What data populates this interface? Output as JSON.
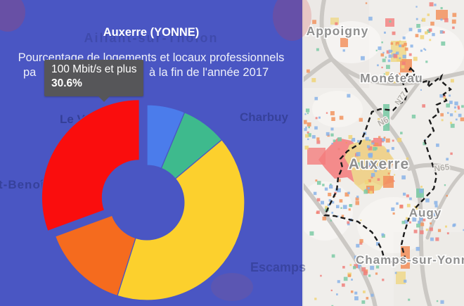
{
  "panel": {
    "title": "Auxerre (YONNE)",
    "subtitle_line1": "Pourcentage de logements et locaux professionnels",
    "subtitle_line2_left": "pa",
    "subtitle_line2_right": "à la fin de l'année 2017",
    "background_color": "#4a56c3"
  },
  "tooltip": {
    "label": "100 Mbit/s et plus",
    "value": "30.6%"
  },
  "chart_data": {
    "type": "pie",
    "variant": "donut",
    "hole_ratio": 0.38,
    "title": "Auxerre (YONNE)",
    "unit": "%",
    "legend_position": "none",
    "segments": [
      {
        "label": "",
        "value": 6.3,
        "color": "#4b7ceb"
      },
      {
        "label": "",
        "value": 7.6,
        "color": "#3eba8d"
      },
      {
        "label": "",
        "value": 41.0,
        "color": "#fcd02d"
      },
      {
        "label": "",
        "value": 14.5,
        "color": "#f56b1e"
      },
      {
        "label": "100 Mbit/s et plus",
        "value": 30.6,
        "color": "#fa0d0d",
        "exploded": true
      }
    ],
    "hovered_segment": {
      "label": "100 Mbit/s et plus",
      "value": "30.6%"
    }
  },
  "map": {
    "labels": {
      "appoigny": "Appoigny",
      "moneteau": "Monéteau",
      "auxerre": "Auxerre",
      "augy": "Augy",
      "champs": "Champs-sur-Yonne",
      "n6": "N6",
      "n77": "N77",
      "n65": "N65"
    },
    "dot_colors": [
      "#8ab3e8",
      "#7ccaa6",
      "#f0d478",
      "#f2945f",
      "#f0807d"
    ]
  },
  "overlay_map_hints": {
    "aillant": "Aillant-sur-Tholon",
    "le_val": "Le Val",
    "benoit": "t-Benoî",
    "charbuy": "Charbuy",
    "escamps": "Escamps"
  }
}
